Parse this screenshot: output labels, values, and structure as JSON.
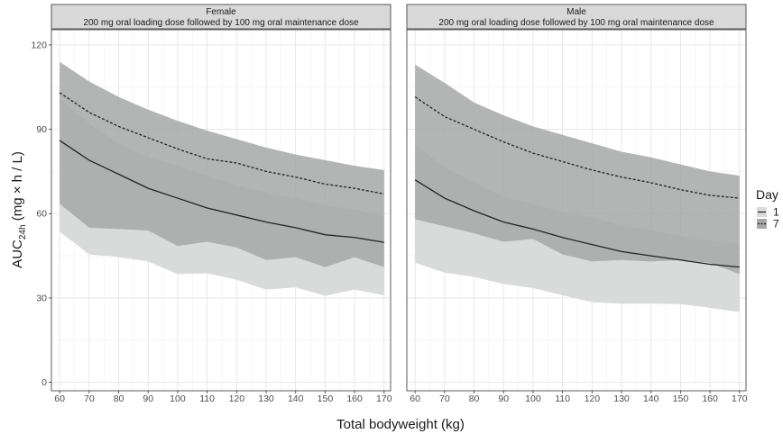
{
  "chart_data": {
    "type": "area",
    "xlabel": "Total bodyweight (kg)",
    "ylabel_main": "AUC",
    "ylabel_sub": "24h",
    "ylabel_rest": " (mg × h / L)",
    "x": [
      60,
      70,
      80,
      90,
      100,
      110,
      120,
      130,
      140,
      150,
      160,
      170
    ],
    "xticks": [
      60,
      70,
      80,
      90,
      100,
      110,
      120,
      130,
      140,
      150,
      160,
      170
    ],
    "ylim": [
      0,
      120
    ],
    "yticks": [
      0,
      30,
      60,
      90,
      120
    ],
    "grid": true,
    "legend": {
      "title": "Day",
      "position": "right",
      "entries": [
        {
          "label": "1",
          "fill": "#d9dada",
          "line": "solid"
        },
        {
          "label": "7",
          "fill": "#a6a8a8",
          "line": "dashed"
        }
      ]
    },
    "colors": {
      "band_day1": "#d9dada",
      "band_day7": "#a6a8a8",
      "line": "#222222",
      "strip": "#d9d9d9"
    },
    "panels": [
      {
        "strip_line1": "Female",
        "strip_line2": "200 mg oral loading dose followed by 100 mg oral maintenance dose",
        "series": [
          {
            "name": "1",
            "median": [
              86,
              79,
              74,
              69,
              65.5,
              62,
              59.5,
              57,
              55,
              52.5,
              51.5,
              49.8
            ],
            "lower": [
              53.5,
              45.5,
              44.5,
              43,
              38.5,
              38.8,
              36.5,
              33,
              33.8,
              30.8,
              33,
              31
            ],
            "upper": [
              101,
              92,
              85,
              80,
              77,
              73.5,
              70,
              67.5,
              65.5,
              63,
              61.5,
              59
            ]
          },
          {
            "name": "7",
            "median": [
              103,
              96,
              91,
              87,
              83,
              79.5,
              78,
              75,
              73,
              70.5,
              69,
              67
            ],
            "lower": [
              63.5,
              55,
              54.5,
              54,
              48.5,
              50,
              48,
              43.5,
              44.5,
              41,
              44.5,
              41
            ],
            "upper": [
              114,
              107,
              101.5,
              97,
              93,
              89.5,
              86.5,
              83.5,
              81,
              79,
              77,
              75.5
            ]
          }
        ]
      },
      {
        "strip_line1": "Male",
        "strip_line2": "200 mg oral loading dose followed by 100 mg oral maintenance dose",
        "series": [
          {
            "name": "1",
            "median": [
              72,
              65.5,
              61,
              57,
              54.5,
              51.5,
              49,
              46.5,
              45,
              43.5,
              42,
              41
            ],
            "lower": [
              42.5,
              39,
              37.5,
              35,
              33.5,
              31,
              28.5,
              28,
              28,
              27.8,
              26.5,
              25
            ],
            "upper": [
              84.5,
              76.5,
              71,
              66,
              63.5,
              60.5,
              58.5,
              56,
              54,
              52,
              50.5,
              49
            ]
          },
          {
            "name": "7",
            "median": [
              101.5,
              94.5,
              90,
              85.5,
              81.5,
              78.5,
              75.5,
              73,
              71,
              68.5,
              66.5,
              65.5
            ],
            "lower": [
              58,
              55.5,
              53,
              50,
              51,
              45.5,
              43,
              43.5,
              43,
              43.5,
              42.5,
              38.5
            ],
            "upper": [
              113,
              106.5,
              99.5,
              95,
              91,
              88,
              85,
              82,
              80,
              77.5,
              75,
              73.5
            ]
          }
        ]
      }
    ]
  }
}
